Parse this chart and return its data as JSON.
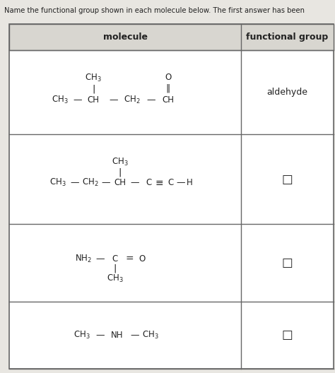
{
  "title": "Name the functional group shown in each molecule below. The first answer has been",
  "col1_header": "molecule",
  "col2_header": "functional group",
  "bg_color": "#e8e6e1",
  "table_bg": "#ffffff",
  "header_bg": "#d8d6d0",
  "border_color": "#666666",
  "text_color": "#222222",
  "answer1": "aldehyde",
  "answer2": "□",
  "answer3": "□",
  "answer4": "□"
}
